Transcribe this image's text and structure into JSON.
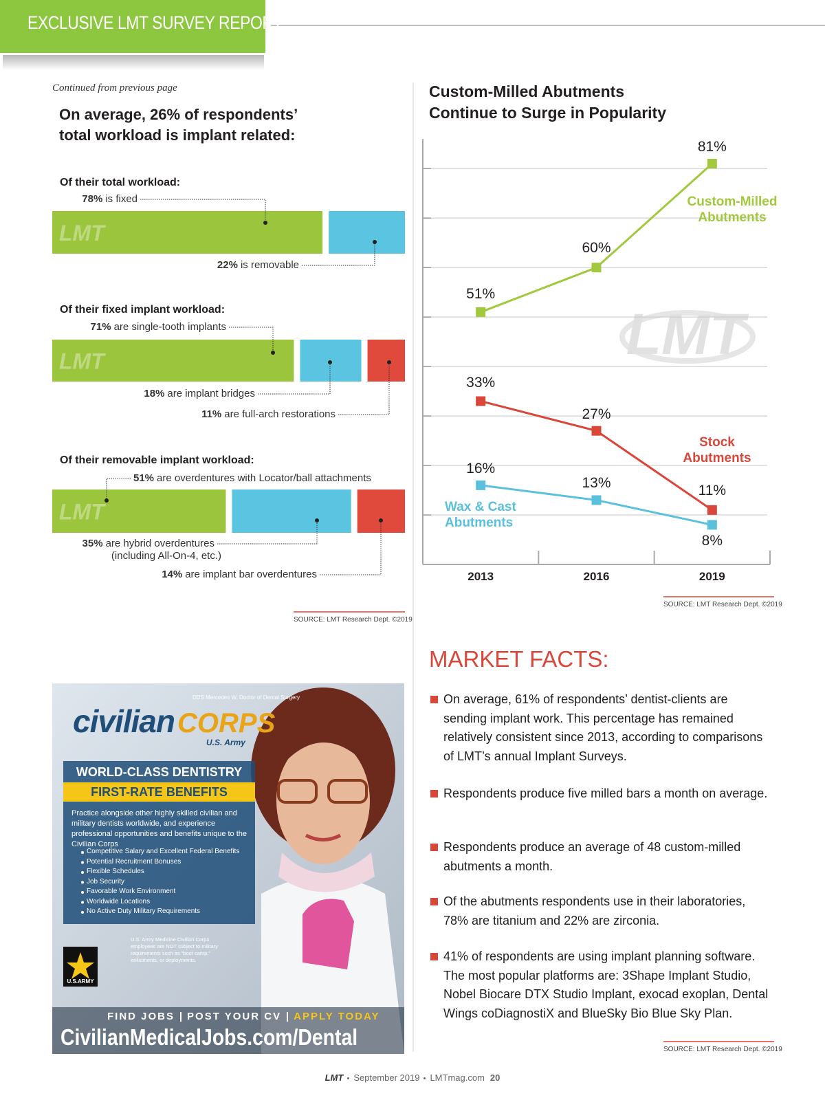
{
  "header": {
    "banner": "EXCLUSIVE LMT SURVEY REPORT",
    "continued": "Continued from previous page",
    "headline": "On average, 26% of respondents’\ntotal workload is implant related:"
  },
  "chart_data": [
    {
      "type": "stacked_bar",
      "title": "Of their total workload:",
      "watermark": "LMT",
      "series": [
        {
          "name": "is fixed",
          "color": "#9bc53d",
          "values": [
            78
          ],
          "value_labels": [
            "78%"
          ]
        },
        {
          "name": "is removable",
          "color": "#5bc5e1",
          "values": [
            22
          ],
          "value_labels": [
            "22%"
          ]
        }
      ]
    },
    {
      "type": "stacked_bar",
      "title": "Of their fixed implant workload:",
      "watermark": "LMT",
      "series": [
        {
          "name": "are single-tooth implants",
          "color": "#9bc53d",
          "values": [
            71
          ],
          "value_labels": [
            "71%"
          ]
        },
        {
          "name": "are implant bridges",
          "color": "#5bc5e1",
          "values": [
            18
          ],
          "value_labels": [
            "18%"
          ]
        },
        {
          "name": "are full-arch restorations",
          "color": "#e04a3c",
          "values": [
            11
          ],
          "value_labels": [
            "11%"
          ]
        }
      ]
    },
    {
      "type": "stacked_bar",
      "title": "Of their removable implant workload:",
      "watermark": "LMT",
      "source": "SOURCE: LMT Research Dept. ©2019",
      "series": [
        {
          "name": "are overdentures with Locator/ball attachments",
          "color": "#9bc53d",
          "values": [
            51
          ],
          "value_labels": [
            "51%"
          ]
        },
        {
          "name": "are hybrid overdentures",
          "note": "(including All-On-4, etc.)",
          "color": "#5bc5e1",
          "values": [
            35
          ],
          "value_labels": [
            "35%"
          ]
        },
        {
          "name": "are implant bar overdentures",
          "color": "#e04a3c",
          "values": [
            14
          ],
          "value_labels": [
            "14%"
          ]
        }
      ]
    },
    {
      "type": "line",
      "title": "Custom-Milled Abutments\nContinue to Surge in Popularity",
      "watermark": "LMT",
      "categories": [
        "2013",
        "2016",
        "2019"
      ],
      "series": [
        {
          "name": "Custom-Milled Abutments",
          "color": "#a2c83e",
          "values": [
            51,
            60,
            81
          ],
          "value_labels": [
            "51%",
            "60%",
            "81%"
          ]
        },
        {
          "name": "Stock Abutments",
          "color": "#d9473a",
          "values": [
            33,
            27,
            11
          ],
          "value_labels": [
            "33%",
            "27%",
            "11%"
          ]
        },
        {
          "name": "Wax & Cast Abutments",
          "color": "#5bc0dd",
          "values": [
            16,
            13,
            8
          ],
          "value_labels": [
            "16%",
            "13%",
            "8%"
          ]
        }
      ],
      "ylim": [
        0,
        86
      ],
      "yticks": [
        10,
        20,
        30,
        40,
        50,
        60,
        70,
        80
      ],
      "grid": true,
      "source": "SOURCE: LMT Research Dept. ©2019"
    }
  ],
  "market_facts": {
    "title": "MARKET FACTS:",
    "items": [
      "On average, 61% of respondents’ dentist-clients are sending implant work. This percentage has remained relatively consistent since 2013, according to comparisons of LMT’s annual Implant Surveys.",
      "Respondents produce five milled bars a month on average.",
      "Respondents produce an average of 48 custom-milled abutments a month.",
      "Of the abutments respondents use in their laboratories, 78% are titanium and 22% are zirconia.",
      "41% of respondents are using implant planning software. The most popular platforms are: 3Shape Implant Studio, Nobel Biocare DTX Studio Implant, exocad exoplan, Dental Wings coDiagnostiX and BlueSky Bio Blue Sky Plan."
    ],
    "source": "SOURCE: LMT Research Dept. ©2019"
  },
  "ad": {
    "brand": "civilian",
    "brand2": "CORPS",
    "brand_sub": "U.S. Army",
    "caption": "DDS Mercedes W, Doctor of Dental Surgery",
    "heading1": "WORLD-CLASS DENTISTRY",
    "heading2": "FIRST-RATE BENEFITS",
    "body": "Practice alongside other highly skilled civilian and military dentists worldwide, and experience professional opportunities and benefits unique to the Civilian Corps",
    "benefits": [
      "Competitive Salary and Excellent Federal Benefits",
      "Potential Recruitment Bonuses",
      "Flexible Schedules",
      "Job Security",
      "Favorable Work Environment",
      "Worldwide Locations",
      "No Active Duty Military Requirements"
    ],
    "note": "U.S. Army Medicine Civilian Corps employees are NOT subject to military requirements such as “boot camp,” enlistments, or deployments.",
    "army": "U.S.ARMY",
    "cta": [
      "FIND JOBS",
      "POST YOUR CV",
      "APPLY TODAY"
    ],
    "url": "CivilianMedicalJobs.com/Dental"
  },
  "footer": {
    "magazine": "LMT",
    "issue": "September 2019",
    "site": "LMTmag.com",
    "page": "20"
  }
}
